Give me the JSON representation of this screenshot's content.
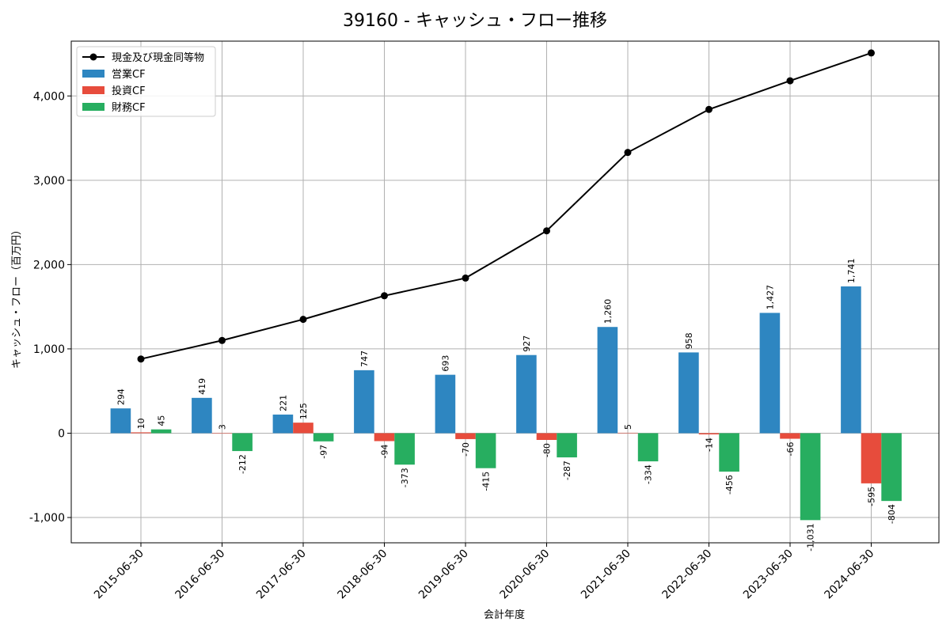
{
  "chart_data": {
    "type": "bar",
    "title": "39160 - キャッシュ・フロー推移",
    "xlabel": "会計年度",
    "ylabel": "キャッシュ・フロー（百万円）",
    "ylim": [
      -1300,
      4650
    ],
    "yticks": [
      -1000,
      0,
      1000,
      2000,
      3000,
      4000
    ],
    "ytick_labels": [
      "-1,000",
      "0",
      "1,000",
      "2,000",
      "3,000",
      "4,000"
    ],
    "grid": true,
    "legend_position": "top-left",
    "categories": [
      "2015-06-30",
      "2016-06-30",
      "2017-06-30",
      "2018-06-30",
      "2019-06-30",
      "2020-06-30",
      "2021-06-30",
      "2022-06-30",
      "2023-06-30",
      "2024-06-30"
    ],
    "series": [
      {
        "name": "営業CF",
        "kind": "bar",
        "color": "#2e86c1",
        "values": [
          294,
          419,
          221,
          747,
          693,
          927,
          1260,
          958,
          1427,
          1741
        ],
        "labels": [
          "294",
          "419",
          "221",
          "747",
          "693",
          "927",
          "1,260",
          "958",
          "1,427",
          "1,741"
        ]
      },
      {
        "name": "投資CF",
        "kind": "bar",
        "color": "#e74c3c",
        "values": [
          10,
          3,
          125,
          -94,
          -70,
          -80,
          5,
          -14,
          -66,
          -595
        ],
        "labels": [
          "10",
          "3",
          "125",
          "-94",
          "-70",
          "-80",
          "5",
          "-14",
          "-66",
          "-595"
        ]
      },
      {
        "name": "財務CF",
        "kind": "bar",
        "color": "#27ae60",
        "values": [
          45,
          -212,
          -97,
          -373,
          -415,
          -287,
          -334,
          -456,
          -1031,
          -804
        ],
        "labels": [
          "45",
          "-212",
          "-97",
          "-373",
          "-415",
          "-287",
          "-334",
          "-456",
          "-1,031",
          "-804"
        ]
      },
      {
        "name": "現金及び現金同等物",
        "kind": "line",
        "color": "#000000",
        "values": [
          880,
          1100,
          1350,
          1630,
          1840,
          2400,
          3330,
          3840,
          4180,
          4510
        ]
      }
    ],
    "legend_order": [
      "現金及び現金同等物",
      "営業CF",
      "投資CF",
      "財務CF"
    ]
  }
}
